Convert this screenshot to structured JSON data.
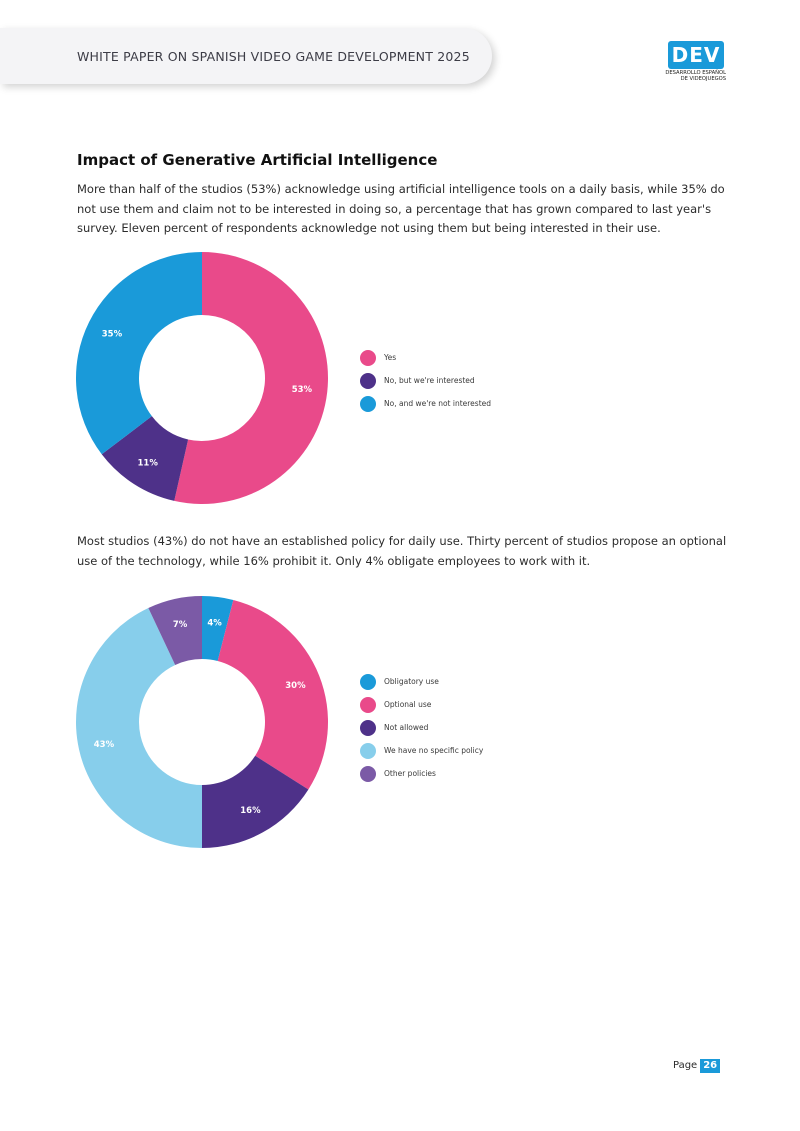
{
  "header": {
    "title": "WHITE PAPER ON SPANISH VIDEO GAME DEVELOPMENT 2025"
  },
  "logo": {
    "text": "DEV",
    "subtitle_line1": "DESARROLLO ESPAÑOL",
    "subtitle_line2": "DE VIDEOJUEGOS"
  },
  "section": {
    "title": "Impact of Generative Artificial Intelligence",
    "paragraph1": "More than half of the studios (53%) acknowledge using artificial intelligence tools on a daily basis, while 35% do not use them and claim not to be interested in doing so, a percentage that has grown compared to last year's survey. Eleven percent of respondents acknowledge not using them but being interested in their use.",
    "paragraph2": "Most studios (43%) do not have an established policy for daily use. Thirty percent of studios propose an optional use of the technology, while 16% prohibit it. Only 4% obligate employees to work with it."
  },
  "chart_data": [
    {
      "type": "pie",
      "donut": true,
      "title": "",
      "slices": [
        {
          "label": "Yes",
          "value": 53,
          "display": "53%",
          "color": "#e94a8a"
        },
        {
          "label": "No, but we're interested",
          "value": 11,
          "display": "11%",
          "color": "#4e3189"
        },
        {
          "label": "No, and we're not interested",
          "value": 35,
          "display": "35%",
          "color": "#1a9ad9"
        }
      ],
      "legend_position": "right"
    },
    {
      "type": "pie",
      "donut": true,
      "title": "",
      "slices": [
        {
          "label": "Obligatory use",
          "value": 4,
          "display": "4%",
          "color": "#1a9ad9"
        },
        {
          "label": "Optional use",
          "value": 30,
          "display": "30%",
          "color": "#e94a8a"
        },
        {
          "label": "Not allowed",
          "value": 16,
          "display": "16%",
          "color": "#4e3189"
        },
        {
          "label": "We have no specific policy",
          "value": 43,
          "display": "43%",
          "color": "#87ceeb"
        },
        {
          "label": "Other policies",
          "value": 7,
          "display": "7%",
          "color": "#7b5aa6"
        }
      ],
      "legend_position": "right"
    }
  ],
  "footer": {
    "page_label": "Page",
    "page_number": "26"
  }
}
